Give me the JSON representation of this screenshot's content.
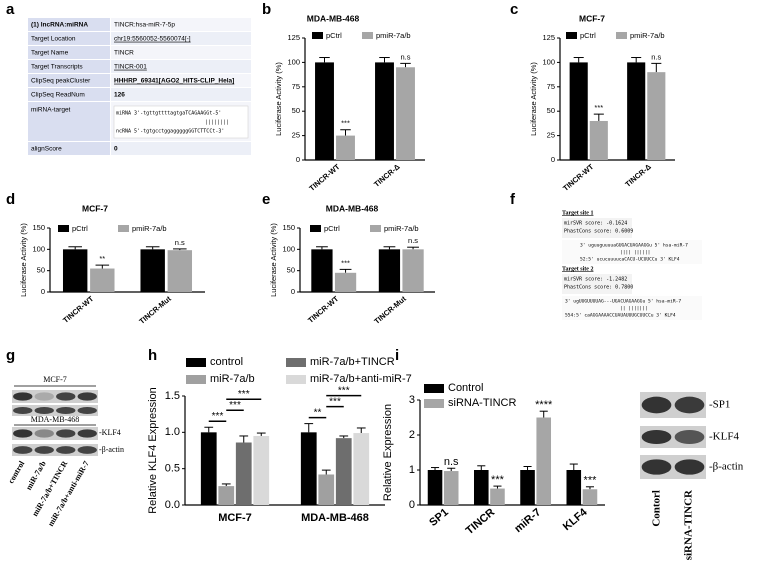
{
  "table_a": {
    "panel": "a",
    "rows": [
      [
        "(1) lncRNA:miRNA",
        "TINCR:hsa-miR-7-5p"
      ],
      [
        "Target Location",
        "chr19:5560052-5560074[-]"
      ],
      [
        "Target Name",
        "TINCR"
      ],
      [
        "Target Transcripts",
        "TINCR-001"
      ],
      [
        "ClipSeq peakCluster",
        "HHHRP_69341[AGO2_HITS-CLIP_Hela]"
      ],
      [
        "ClipSeq ReadNum",
        "126"
      ],
      [
        "miRNA-target",
        [
          "miRNA 3'-tgttgttttagtgaTCAGAAGGt-5'",
          "||||||||",
          "ncRNA 5'-tgtgcctggagggggGGTCTTCCt-3'"
        ]
      ],
      [
        "alignScore",
        "0"
      ]
    ]
  },
  "sites_f": {
    "panel": "f",
    "sites": [
      {
        "title": "Target site 1",
        "lines": [
          "mirSVR score:    -0.1624",
          "PhastCons score: 0.6009"
        ],
        "align": [
          "3' uguuguuuuaGUGACUAGAAGGu 5' hsa-miR-7",
          "|||| ||||||",
          "52:5' ucucuuuucaCACU-UCUUCCu 3' KLF4"
        ]
      },
      {
        "title": "Target site 2",
        "lines": [
          "mirSVR score:    -1.2482",
          "PhastCons score: 0.7800"
        ],
        "align": [
          "3' ugUUGUUUUAG---UGACUAGAAGGu 5' hsa-miR-7",
          "|| |||||||",
          "554:5' caAGGAAAACCUAUAUUUGCUUCCu 3' KLF4"
        ]
      }
    ]
  },
  "blot_g": {
    "panel": "g",
    "cells": [
      "MCF-7",
      "MDA-MB-468"
    ],
    "bands": [
      "-KLF4",
      "-β-actin"
    ],
    "lanes": [
      "control",
      "miR-7a/b",
      "miR-7a/b+TINCR",
      "miR-7a/b+anti-miR-7"
    ]
  },
  "blot_i": {
    "bands": [
      "-SP1",
      "-KLF4",
      "-β-actin"
    ],
    "lanes": [
      "Contorl",
      "siRNA-TINCR"
    ]
  },
  "chart_data": [
    {
      "type": "bar",
      "panel": "b",
      "title": "MDA-MB-468",
      "ylabel": "Luciferase Activity (%)",
      "categories": [
        "TINCR-WT",
        "TINCR-Δ"
      ],
      "series": [
        {
          "name": "pCtrl",
          "color": "#000000",
          "values": [
            100,
            100
          ],
          "errors": [
            5,
            5
          ]
        },
        {
          "name": "pmiR-7a/b",
          "color": "#a6a6a6",
          "values": [
            25,
            95
          ],
          "errors": [
            6,
            4
          ],
          "annotations": [
            "***",
            "n.s"
          ]
        }
      ],
      "ylim": [
        0,
        125
      ],
      "yticks": [
        0,
        25,
        50,
        75,
        100,
        125
      ]
    },
    {
      "type": "bar",
      "panel": "c",
      "title": "MCF-7",
      "ylabel": "Luciferase Activity (%)",
      "categories": [
        "TINCR-WT",
        "TINCR-Δ"
      ],
      "series": [
        {
          "name": "pCtrl",
          "color": "#000000",
          "values": [
            100,
            100
          ],
          "errors": [
            5,
            5
          ]
        },
        {
          "name": "pmiR-7a/b",
          "color": "#a6a6a6",
          "values": [
            40,
            90
          ],
          "errors": [
            7,
            9
          ],
          "annotations": [
            "***",
            "n.s"
          ]
        }
      ],
      "ylim": [
        0,
        125
      ],
      "yticks": [
        0,
        25,
        50,
        75,
        100,
        125
      ]
    },
    {
      "type": "bar",
      "panel": "d",
      "title": "MCF-7",
      "ylabel": "Luciferase Activity (%)",
      "categories": [
        "TINCR-WT",
        "TINCR-Mut"
      ],
      "series": [
        {
          "name": "pCtrl",
          "color": "#000000",
          "values": [
            100,
            100
          ],
          "errors": [
            6,
            6
          ]
        },
        {
          "name": "pmiR-7a/b",
          "color": "#a6a6a6",
          "values": [
            55,
            98
          ],
          "errors": [
            8,
            3
          ],
          "annotations": [
            "**",
            "n.s"
          ]
        }
      ],
      "ylim": [
        0,
        150
      ],
      "yticks": [
        0,
        50,
        100,
        150
      ]
    },
    {
      "type": "bar",
      "panel": "e",
      "title": "MDA-MB-468",
      "ylabel": "Luciferase Activity (%)",
      "categories": [
        "TINCR-WT",
        "TINCR-Mut"
      ],
      "series": [
        {
          "name": "pCtrl",
          "color": "#000000",
          "values": [
            100,
            100
          ],
          "errors": [
            6,
            6
          ]
        },
        {
          "name": "pmiR-7a/b",
          "color": "#a6a6a6",
          "values": [
            45,
            100
          ],
          "errors": [
            8,
            5
          ],
          "annotations": [
            "***",
            "n.s"
          ]
        }
      ],
      "ylim": [
        0,
        150
      ],
      "yticks": [
        0,
        50,
        100,
        150
      ]
    },
    {
      "type": "bar",
      "panel": "h",
      "ylabel": "Relative KLF4 Expression",
      "categories": [
        "MCF-7",
        "MDA-MB-468"
      ],
      "series": [
        {
          "name": "control",
          "color": "#000000",
          "values": [
            1.0,
            1.0
          ],
          "errors": [
            0.07,
            0.12
          ]
        },
        {
          "name": "miR-7a/b",
          "color": "#a0a0a0",
          "values": [
            0.26,
            0.42
          ],
          "errors": [
            0.03,
            0.06
          ]
        },
        {
          "name": "miR-7a/b+TINCR",
          "color": "#6e6e6e",
          "values": [
            0.86,
            0.92
          ],
          "errors": [
            0.09,
            0.03
          ]
        },
        {
          "name": "miR-7a/b+anti-miR-7",
          "color": "#d9d9d9",
          "values": [
            0.95,
            0.99
          ],
          "errors": [
            0.04,
            0.07
          ]
        }
      ],
      "significance": [
        [
          "***",
          "***",
          "***"
        ],
        [
          "**",
          "***",
          "***"
        ]
      ],
      "ylim": [
        0,
        1.5
      ],
      "yticks": [
        {
          "value": 0,
          "label": "0.0"
        },
        0.5,
        {
          "value": 1,
          "label": "1.0"
        },
        1.5
      ]
    },
    {
      "type": "bar",
      "panel": "i",
      "ylabel": "Relative Expression",
      "categories": [
        "SP1",
        "TINCR",
        "miR-7",
        "KLF4"
      ],
      "series": [
        {
          "name": "Control",
          "color": "#000000",
          "values": [
            1.0,
            1.0,
            1.0,
            1.0
          ],
          "errors": [
            0.07,
            0.12,
            0.1,
            0.17
          ]
        },
        {
          "name": "siRNA-TINCR",
          "color": "#a6a6a6",
          "values": [
            0.97,
            0.47,
            2.5,
            0.45
          ],
          "errors": [
            0.08,
            0.07,
            0.18,
            0.07
          ],
          "annotations": [
            "n.s",
            "***",
            "****",
            "***"
          ]
        }
      ],
      "ylim": [
        0,
        3
      ],
      "yticks": [
        0,
        1,
        2,
        3
      ]
    }
  ]
}
